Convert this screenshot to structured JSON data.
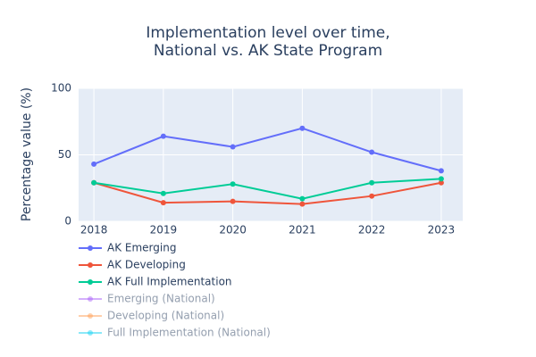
{
  "chart_data": {
    "type": "line",
    "title": [
      "Implementation level over time,",
      "National vs. AK State Program"
    ],
    "y_label": "Percentage value (%)",
    "x": [
      2018,
      2019,
      2020,
      2021,
      2022,
      2023
    ],
    "xlim": [
      2017.78,
      2023.31
    ],
    "xticks": [
      2018,
      2019,
      2020,
      2021,
      2022,
      2023
    ],
    "ylim": [
      0,
      100
    ],
    "yticks": [
      0,
      50,
      100
    ],
    "grid": true,
    "legend": "bottom-left",
    "series": [
      {
        "name": "AK Emerging",
        "color": "#636efa",
        "values": [
          43,
          64,
          56,
          70,
          52,
          38
        ]
      },
      {
        "name": "AK Developing",
        "color": "#EF553B",
        "values": [
          29,
          14,
          15,
          13,
          19,
          29
        ]
      },
      {
        "name": "AK Full Implementation",
        "color": "#00cc96",
        "values": [
          29,
          21,
          28,
          17,
          29,
          32
        ]
      },
      {
        "name": "Emerging (National)",
        "color": "#ab63fa",
        "visible": "legendonly",
        "values": [
          null,
          null,
          null,
          null,
          null,
          null
        ]
      },
      {
        "name": "Developing (National)",
        "color": "#FFA15A",
        "visible": "legendonly",
        "values": [
          null,
          null,
          null,
          null,
          null,
          null
        ]
      },
      {
        "name": "Full Implementation (National)",
        "color": "#19d3f3",
        "visible": "legendonly",
        "values": [
          null,
          null,
          null,
          null,
          null,
          null
        ]
      }
    ]
  }
}
